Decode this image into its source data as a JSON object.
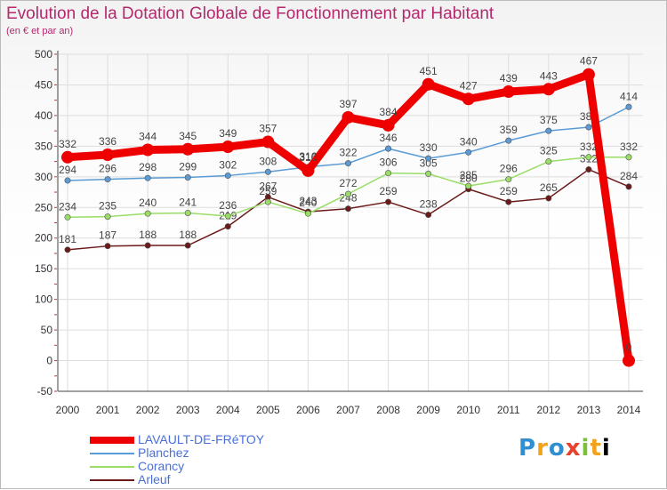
{
  "chart_data": {
    "type": "line",
    "title": "Evolution de la Dotation Globale de Fonctionnement par Habitant",
    "subtitle": "(en € et par an)",
    "categories": [
      "2000",
      "2001",
      "2002",
      "2003",
      "2004",
      "2005",
      "2006",
      "2007",
      "2008",
      "2009",
      "2010",
      "2011",
      "2012",
      "2013",
      "2014"
    ],
    "yticks": [
      -50,
      0,
      50,
      100,
      150,
      200,
      250,
      300,
      350,
      400,
      450,
      500
    ],
    "ylim": [
      -50,
      500
    ],
    "grid": true,
    "legend_position": "bottom-left",
    "series": [
      {
        "name": "LAVAULT-DE-FRéTOY",
        "color": "#ee0000",
        "emphasis": true,
        "values": [
          332,
          336,
          344,
          345,
          349,
          357,
          310,
          397,
          384,
          451,
          427,
          439,
          443,
          467,
          0
        ]
      },
      {
        "name": "Planchez",
        "color": "#5b9bd5",
        "emphasis": false,
        "values": [
          294,
          296,
          298,
          299,
          302,
          308,
          316,
          322,
          346,
          330,
          340,
          359,
          375,
          381,
          414
        ]
      },
      {
        "name": "Corancy",
        "color": "#99dd66",
        "emphasis": false,
        "values": [
          234,
          235,
          240,
          241,
          236,
          259,
          240,
          272,
          306,
          305,
          285,
          296,
          325,
          332,
          332
        ]
      },
      {
        "name": "Arleuf",
        "color": "#6b1a1a",
        "emphasis": false,
        "values": [
          181,
          187,
          188,
          188,
          219,
          267,
          243,
          248,
          259,
          238,
          280,
          259,
          265,
          312,
          284
        ]
      }
    ]
  },
  "legend": {
    "items": [
      "LAVAULT-DE-FRéTOY",
      "Planchez",
      "Corancy",
      "Arleuf"
    ]
  },
  "brand": {
    "letters": [
      "P",
      "r",
      "o",
      "x",
      "i",
      "t",
      "i"
    ]
  }
}
